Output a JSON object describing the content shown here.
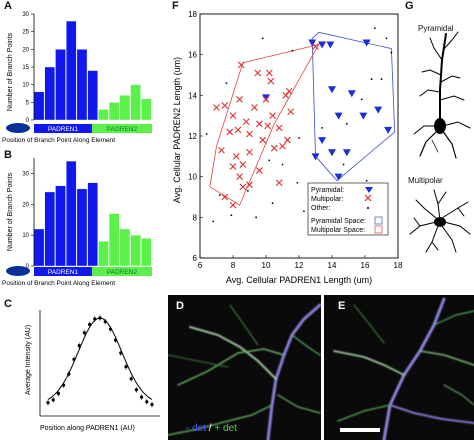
{
  "panels": {
    "A": {
      "letter": "A",
      "ylabel": "Number of Branch Points",
      "xlabel": "Position of Branch Point Along Element",
      "seg1": "PADREN1",
      "seg2": "PADREN2",
      "yticks": [
        "0",
        "5",
        "10",
        "15",
        "20",
        "25",
        "30"
      ],
      "colors": {
        "padren1": "#1018ee",
        "padren2": "#5cf04a",
        "soma": "#0b2f9a"
      }
    },
    "B": {
      "letter": "B",
      "ylabel": "Number of Branch Points",
      "xlabel": "Position of Branch Point Along Element",
      "seg1": "PADREN1",
      "seg2": "PADREN2",
      "yticks": [
        "0",
        "10",
        "20",
        "30"
      ]
    },
    "C": {
      "letter": "C",
      "ylabel": "Average Intensity (AU)",
      "xlabel": "Position along PADREN1 (AU)"
    },
    "D": {
      "letter": "D",
      "caption_minus": "- det",
      "caption_sep": " / ",
      "caption_plus": "+ det"
    },
    "E": {
      "letter": "E"
    },
    "F": {
      "letter": "F",
      "ylabel": "Avg. Cellular PADREN2 Length (um)",
      "xlabel": "Avg. Cellular PADREN1 Length (um)",
      "xticks": [
        "6",
        "8",
        "10",
        "12",
        "14",
        "16",
        "18"
      ],
      "yticks": [
        "6",
        "8",
        "10",
        "12",
        "14",
        "16",
        "18"
      ],
      "legend": {
        "pyramidal": "Pyramidal:",
        "multipolar": "Multipolar:",
        "other": "Other:",
        "pyr_space": "Pyramidal Space:",
        "mult_space": "Multipolar Space:"
      }
    },
    "G": {
      "letter": "G",
      "pyramidal": "Pyramidal",
      "multipolar": "Multipolar"
    }
  },
  "chart_data": [
    {
      "panel": "A",
      "type": "bar",
      "ylim": [
        0,
        30
      ],
      "values": [
        8,
        15,
        20,
        28,
        20,
        14,
        3,
        5,
        7,
        10,
        6
      ],
      "segments": [
        "PADREN1",
        "PADREN1",
        "PADREN1",
        "PADREN1",
        "PADREN1",
        "PADREN1",
        "PADREN2",
        "PADREN2",
        "PADREN2",
        "PADREN2",
        "PADREN2"
      ]
    },
    {
      "panel": "B",
      "type": "bar",
      "ylim": [
        0,
        35
      ],
      "values": [
        12,
        24,
        26,
        34,
        25,
        27,
        8,
        17,
        12,
        10,
        9
      ],
      "segments": [
        "PADREN1",
        "PADREN1",
        "PADREN1",
        "PADREN1",
        "PADREN1",
        "PADREN1",
        "PADREN2",
        "PADREN2",
        "PADREN2",
        "PADREN2",
        "PADREN2"
      ]
    },
    {
      "panel": "C",
      "type": "scatter",
      "x": [
        0.0,
        0.05,
        0.1,
        0.15,
        0.2,
        0.25,
        0.3,
        0.35,
        0.4,
        0.45,
        0.5,
        0.55,
        0.6,
        0.65,
        0.7,
        0.75,
        0.8,
        0.85,
        0.9,
        0.95,
        1.0
      ],
      "y": [
        0.08,
        0.11,
        0.18,
        0.27,
        0.39,
        0.55,
        0.7,
        0.84,
        0.93,
        0.99,
        1.0,
        0.96,
        0.88,
        0.76,
        0.62,
        0.47,
        0.34,
        0.22,
        0.14,
        0.09,
        0.06
      ]
    },
    {
      "panel": "F",
      "type": "scatter",
      "xlim": [
        6,
        18
      ],
      "ylim": [
        6,
        18
      ],
      "series": [
        {
          "name": "Pyramidal",
          "x": [
            12.8,
            13.4,
            13.9,
            16.1,
            14.0,
            15.2,
            15.9,
            16.8,
            14.4,
            10.0,
            13.4,
            14.0,
            14.9,
            13.0,
            17.4,
            14.4
          ],
          "y": [
            16.6,
            16.5,
            16.5,
            16.6,
            14.3,
            14.1,
            13.0,
            13.3,
            13.0,
            13.9,
            11.8,
            11.2,
            11.2,
            11.0,
            12.3,
            10.0
          ]
        },
        {
          "name": "Multipolar",
          "x": [
            13.0,
            8.5,
            9.5,
            10.2,
            10.3,
            7.0,
            7.5,
            8.4,
            9.3,
            10.0,
            11.2,
            11.4,
            8.0,
            8.8,
            9.6,
            10.4,
            11.5,
            7.8,
            8.3,
            9.0,
            10.1,
            10.8,
            11.0,
            7.3,
            8.2,
            9.0,
            9.8,
            10.5,
            11.3,
            8.0,
            8.6,
            9.6,
            8.4,
            8.6,
            10.8,
            9.0,
            7.5,
            8.0
          ],
          "y": [
            16.4,
            15.5,
            15.1,
            15.1,
            14.7,
            13.4,
            13.5,
            13.8,
            13.4,
            13.8,
            14.0,
            14.2,
            13.0,
            12.7,
            12.6,
            13.0,
            13.2,
            12.2,
            12.3,
            12.1,
            12.5,
            12.4,
            11.5,
            11.3,
            11.0,
            11.2,
            11.8,
            11.4,
            11.8,
            10.5,
            10.6,
            10.3,
            10.0,
            9.5,
            9.7,
            9.6,
            9.0,
            8.6
          ]
        },
        {
          "name": "Other",
          "x": [
            6.8,
            7.2,
            7.9,
            8.9,
            9.4,
            10.4,
            11.0,
            11.9,
            12.3,
            12.9,
            13.4,
            14.7,
            15.6,
            16.1,
            16.6,
            17.0,
            17.3,
            17.6,
            6.4,
            12.0,
            15.8,
            9.8,
            11.6,
            14.9,
            7.6,
            10.2,
            16.4
          ],
          "y": [
            7.8,
            9.1,
            8.1,
            9.3,
            8.0,
            8.7,
            10.6,
            9.7,
            8.3,
            9.3,
            12.4,
            10.6,
            8.4,
            9.8,
            17.3,
            14.8,
            16.8,
            16.1,
            12.1,
            11.9,
            13.8,
            16.8,
            16.2,
            12.6,
            14.6,
            10.8,
            14.8
          ]
        }
      ],
      "hulls": [
        {
          "name": "Pyramidal Space",
          "x": [
            12.8,
            13.2,
            17.6,
            17.8,
            14.3,
            13.0
          ],
          "y": [
            16.8,
            17.1,
            16.3,
            12.2,
            9.8,
            11.0
          ]
        },
        {
          "name": "Multipolar Space",
          "x": [
            8.6,
            13.2,
            10.5,
            8.4,
            6.6,
            7.0
          ],
          "y": [
            15.6,
            16.5,
            12.6,
            8.6,
            9.5,
            11.5
          ]
        }
      ]
    }
  ]
}
